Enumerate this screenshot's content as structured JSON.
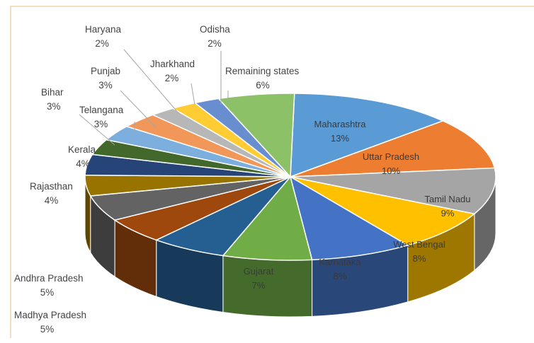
{
  "chart_data": {
    "type": "pie",
    "style": "3d",
    "legend": "none",
    "slices": [
      {
        "label": "Maharashtra",
        "value": 13,
        "value_label": "13%",
        "color": "#5b9bd5"
      },
      {
        "label": "Uttar Pradesh",
        "value": 10,
        "value_label": "10%",
        "color": "#ed7d31"
      },
      {
        "label": "Tamil Nadu",
        "value": 9,
        "value_label": "9%",
        "color": "#a5a5a5"
      },
      {
        "label": "West Bengal",
        "value": 8,
        "value_label": "8%",
        "color": "#ffc000"
      },
      {
        "label": "Karnataka",
        "value": 8,
        "value_label": "8%",
        "color": "#4472c4"
      },
      {
        "label": "Gujarat",
        "value": 7,
        "value_label": "7%",
        "color": "#70ad47"
      },
      {
        "label": "Rajasthan",
        "value": 6,
        "value_label": "6%",
        "color": "#255e91"
      },
      {
        "label": "Madhya Pradesh",
        "value": 5,
        "value_label": "5%",
        "color": "#9e480e"
      },
      {
        "label": "Andhra Pradesh",
        "value": 5,
        "value_label": "5%",
        "color": "#636363"
      },
      {
        "label": "Rajasthan",
        "value": 4,
        "value_label": "4%",
        "color": "#997300"
      },
      {
        "label": "Kerala",
        "value": 4,
        "value_label": "4%",
        "color": "#264478"
      },
      {
        "label": "Bihar",
        "value": 3,
        "value_label": "3%",
        "color": "#43682b"
      },
      {
        "label": "Telangana",
        "value": 3,
        "value_label": "3%",
        "color": "#7cafdd"
      },
      {
        "label": "Punjab",
        "value": 3,
        "value_label": "3%",
        "color": "#f1975a"
      },
      {
        "label": "Haryana",
        "value": 2,
        "value_label": "2%",
        "color": "#b7b7b7"
      },
      {
        "label": "Jharkhand",
        "value": 2,
        "value_label": "2%",
        "color": "#ffcd33"
      },
      {
        "label": "Odisha",
        "value": 2,
        "value_label": "2%",
        "color": "#698ed0"
      },
      {
        "label": "Remaining states",
        "value": 6,
        "value_label": "6%",
        "color": "#8cc168"
      }
    ]
  }
}
